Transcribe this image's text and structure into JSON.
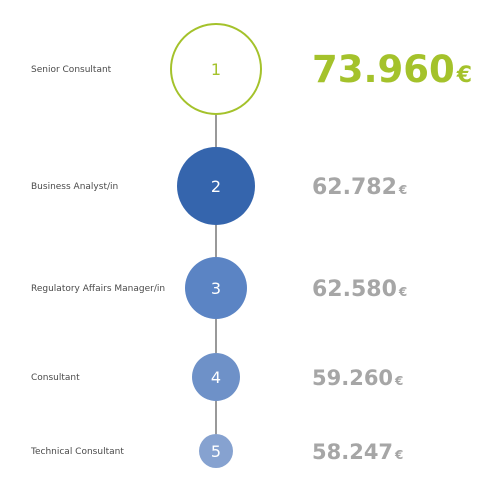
{
  "chart_data": {
    "type": "ranking",
    "currency": "€",
    "items": [
      {
        "rank": "1",
        "label": "Senior Consultant",
        "value": "73.960",
        "amount": 73960
      },
      {
        "rank": "2",
        "label": "Business Analyst/in",
        "value": "62.782",
        "amount": 62782
      },
      {
        "rank": "3",
        "label": "Regulatory Affairs Manager/in",
        "value": "62.580",
        "amount": 62580
      },
      {
        "rank": "4",
        "label": "Consultant",
        "value": "59.260",
        "amount": 59260
      },
      {
        "rank": "5",
        "label": "Technical Consultant",
        "value": "58.247",
        "amount": 58247
      }
    ]
  },
  "colors": {
    "highlight": "#a4c22b",
    "highlight_fill": "#ffffff",
    "rank2": "#3565ad",
    "rank3": "#5b84c4",
    "rank4": "#6e91c8",
    "rank5": "#86a2d0",
    "value_gray": "#a6a6a6",
    "rank_text": "#ffffff",
    "connector": "#333333"
  }
}
